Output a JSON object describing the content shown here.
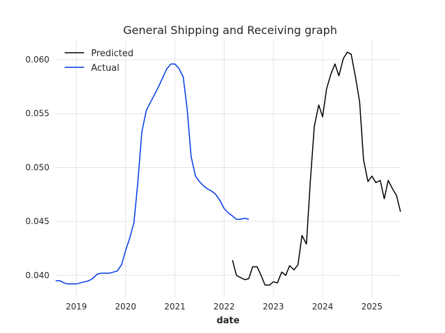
{
  "chart_data": {
    "type": "line",
    "title": "General Shipping and Receiving graph",
    "xlabel": "date",
    "ylabel": "",
    "xlim": [
      2018.58,
      2025.58
    ],
    "ylim": [
      0.038,
      0.0618
    ],
    "grid": true,
    "legend_position": "top-left",
    "x_ticks": [
      2019,
      2020,
      2021,
      2022,
      2023,
      2024,
      2025
    ],
    "x_tick_labels": [
      "2019",
      "2020",
      "2021",
      "2022",
      "2023",
      "2024",
      "2025"
    ],
    "y_ticks": [
      0.04,
      0.045,
      0.05,
      0.055,
      0.06
    ],
    "y_tick_labels": [
      "0.040",
      "0.045",
      "0.050",
      "0.055",
      "0.060"
    ],
    "series": [
      {
        "name": "Predicted",
        "color": "#000000",
        "x": [
          2022.17,
          2022.25,
          2022.33,
          2022.42,
          2022.5,
          2022.58,
          2022.67,
          2022.75,
          2022.83,
          2022.92,
          2023.0,
          2023.08,
          2023.17,
          2023.25,
          2023.33,
          2023.42,
          2023.5,
          2023.58,
          2023.67,
          2023.75,
          2023.83,
          2023.92,
          2024.0,
          2024.08,
          2024.17,
          2024.25,
          2024.33,
          2024.42,
          2024.5,
          2024.58,
          2024.67,
          2024.75,
          2024.83,
          2024.92,
          2025.0,
          2025.08,
          2025.17,
          2025.25,
          2025.33,
          2025.42,
          2025.5,
          2025.58
        ],
        "values": [
          0.0414,
          0.04,
          0.0398,
          0.0396,
          0.0397,
          0.0408,
          0.0408,
          0.04,
          0.0391,
          0.0391,
          0.0394,
          0.0393,
          0.0403,
          0.04,
          0.0409,
          0.0405,
          0.041,
          0.0437,
          0.0429,
          0.0487,
          0.0538,
          0.0558,
          0.0547,
          0.0573,
          0.0587,
          0.0596,
          0.0585,
          0.0601,
          0.0607,
          0.0605,
          0.0583,
          0.0561,
          0.0507,
          0.0487,
          0.0492,
          0.0486,
          0.0488,
          0.0471,
          0.0488,
          0.048,
          0.0474,
          0.0459
        ]
      },
      {
        "name": "Actual",
        "color": "#0038e6",
        "x": [
          2018.58,
          2018.67,
          2018.75,
          2018.83,
          2018.92,
          2019.0,
          2019.08,
          2019.17,
          2019.25,
          2019.33,
          2019.42,
          2019.5,
          2019.58,
          2019.67,
          2019.75,
          2019.83,
          2019.92,
          2020.0,
          2020.08,
          2020.17,
          2020.25,
          2020.33,
          2020.42,
          2020.5,
          2020.58,
          2020.67,
          2020.75,
          2020.83,
          2020.92,
          2021.0,
          2021.08,
          2021.17,
          2021.25,
          2021.33,
          2021.42,
          2021.5,
          2021.58,
          2021.67,
          2021.75,
          2021.83,
          2021.92,
          2022.0,
          2022.08,
          2022.17,
          2022.25,
          2022.33,
          2022.42,
          2022.5
        ],
        "values": [
          0.0395,
          0.0395,
          0.0393,
          0.0392,
          0.0392,
          0.0392,
          0.0393,
          0.0394,
          0.0395,
          0.0397,
          0.0401,
          0.0402,
          0.0402,
          0.0402,
          0.0403,
          0.0404,
          0.041,
          0.0423,
          0.0434,
          0.0449,
          0.0487,
          0.0533,
          0.0553,
          0.056,
          0.0567,
          0.0575,
          0.0583,
          0.0591,
          0.0596,
          0.0596,
          0.0592,
          0.0584,
          0.0554,
          0.051,
          0.0492,
          0.0487,
          0.0483,
          0.048,
          0.0478,
          0.0475,
          0.0469,
          0.0462,
          0.0458,
          0.0455,
          0.0452,
          0.0452,
          0.0453,
          0.0452
        ]
      }
    ]
  }
}
